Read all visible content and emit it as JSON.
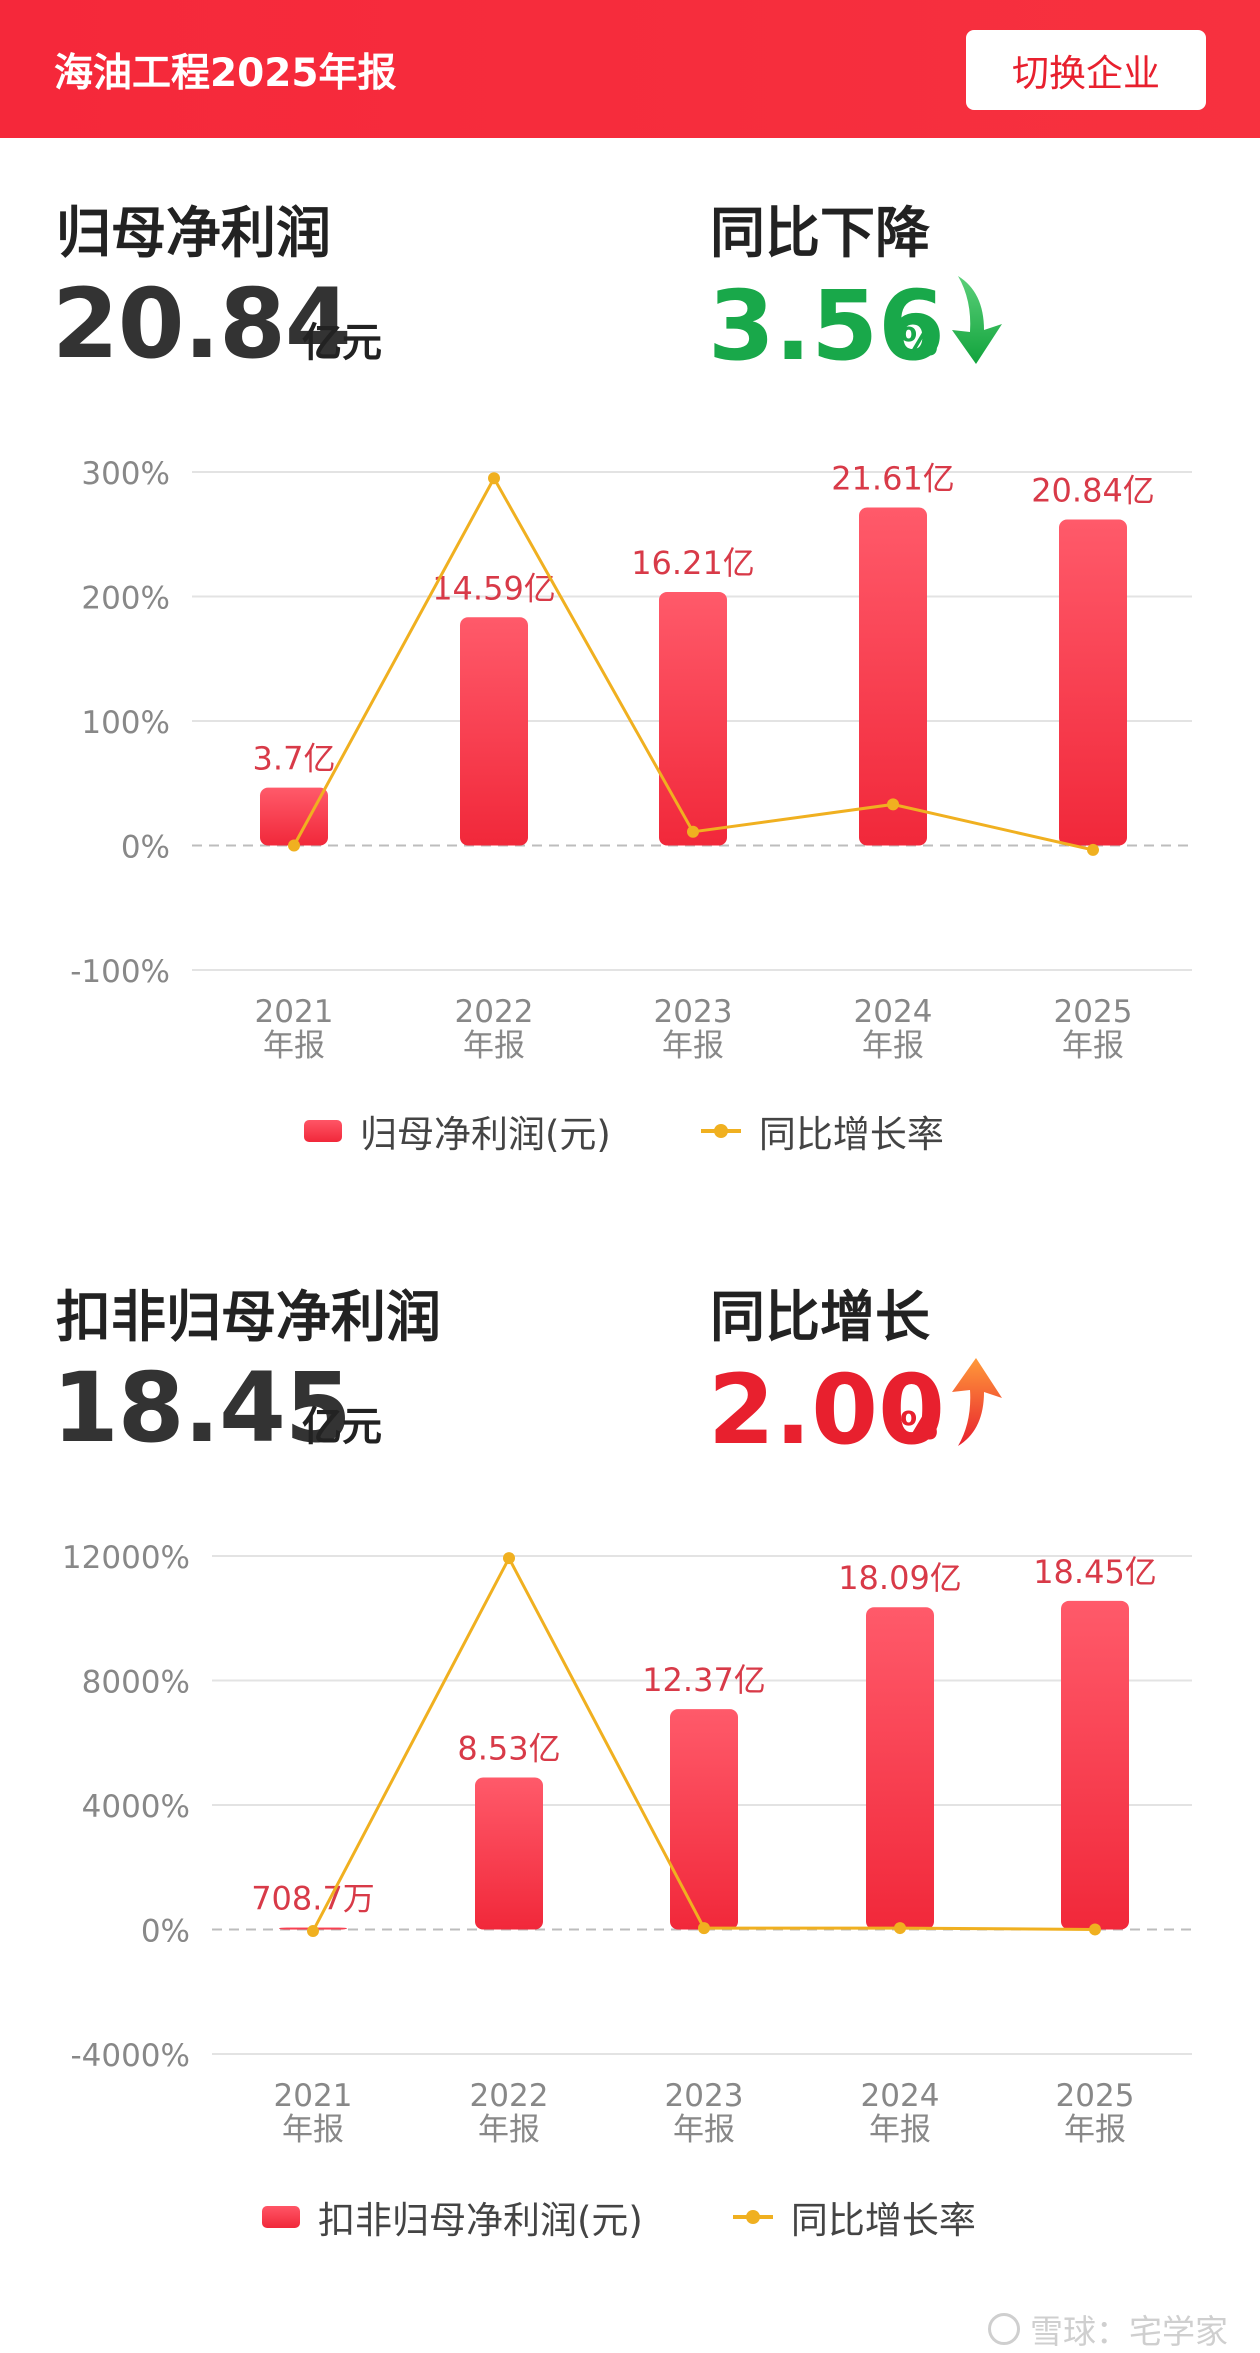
{
  "header": {
    "title": "海油工程2025年报",
    "switch_label": "切换企业"
  },
  "section1": {
    "label": "归母净利润",
    "value": "20.84",
    "unit": "亿元",
    "change_label": "同比下降",
    "change_value": "3.56",
    "change_unit": "%",
    "change_color": "#19a84a"
  },
  "section2": {
    "label": "扣非归母净利润",
    "value": "18.45",
    "unit": "亿元",
    "change_label": "同比增长",
    "change_value": "2.00",
    "change_unit": "%",
    "change_color": "#e8202e"
  },
  "chart_data": [
    {
      "type": "bar",
      "categories": [
        "2021\n年报",
        "2022\n年报",
        "2023\n年报",
        "2024\n年报",
        "2025\n年报"
      ],
      "series": [
        {
          "name": "归母净利润(元)",
          "type": "bar",
          "values": [
            3.7,
            14.59,
            16.21,
            21.61,
            20.84
          ],
          "labels": [
            "3.7亿",
            "14.59亿",
            "16.21亿",
            "21.61亿",
            "20.84亿"
          ]
        },
        {
          "name": "同比增长率",
          "type": "line",
          "values": [
            0,
            295,
            11,
            33,
            -3.56
          ]
        }
      ],
      "yticks": [
        "300%",
        "200%",
        "100%",
        "0%",
        "-100%"
      ],
      "ylim": [
        -100,
        300
      ],
      "colors": {
        "bar": "#f1283a",
        "line": "#f0b020"
      },
      "legend": "bottom"
    },
    {
      "type": "bar",
      "categories": [
        "2021\n年报",
        "2022\n年报",
        "2023\n年报",
        "2024\n年报",
        "2025\n年报"
      ],
      "series": [
        {
          "name": "扣非归母净利润(元)",
          "type": "bar",
          "values": [
            0.07087,
            8.53,
            12.37,
            18.09,
            18.45
          ],
          "labels": [
            "708.7万",
            "8.53亿",
            "12.37亿",
            "18.09亿",
            "18.45亿"
          ]
        },
        {
          "name": "同比增长率",
          "type": "line",
          "values": [
            -50,
            11930,
            45,
            46,
            2
          ]
        }
      ],
      "yticks": [
        "12000%",
        "8000%",
        "4000%",
        "0%",
        "-4000%"
      ],
      "ylim": [
        -4000,
        12000
      ],
      "colors": {
        "bar": "#f1283a",
        "line": "#f0b020"
      },
      "legend": "bottom"
    }
  ],
  "watermark": "雪球：宅学家"
}
